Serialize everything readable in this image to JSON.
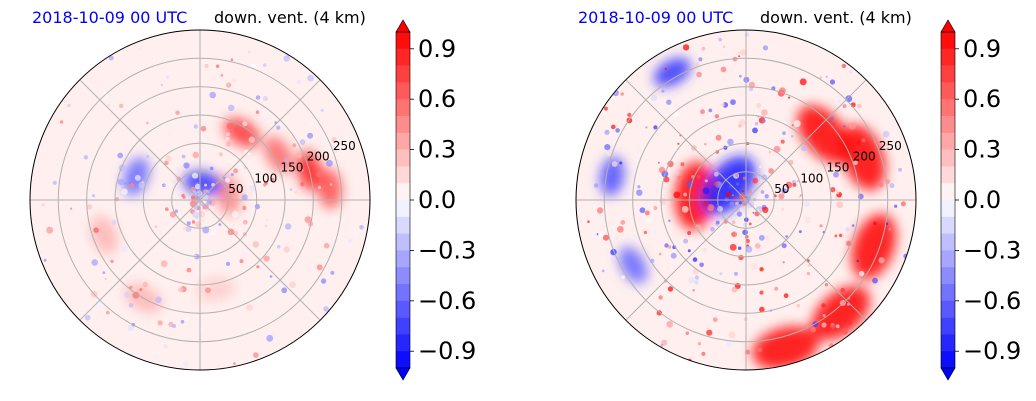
{
  "chart_data": [
    {
      "type": "heatmap",
      "projection": "polar",
      "date": "2018-10-09 00 UTC",
      "title": "down. vent. (4 km)",
      "radial_ticks": [
        50,
        100,
        150,
        200,
        250
      ],
      "radial_max": 300,
      "angular_gridlines_deg": [
        0,
        45,
        90,
        135,
        180,
        225,
        270,
        315
      ],
      "colorbar": {
        "ticks": [
          "0.9",
          "0.6",
          "0.3",
          "0.0",
          "−0.3",
          "−0.6",
          "−0.9"
        ],
        "range": [
          -1.0,
          1.0
        ],
        "colormap": "bwr",
        "extend": "both",
        "levels": 20
      },
      "field": [
        {
          "r": 140,
          "theta": 58,
          "value": 0.8
        },
        {
          "r": 160,
          "theta": 30,
          "value": 0.6
        },
        {
          "r": 200,
          "theta": 15,
          "value": 0.9
        },
        {
          "r": 230,
          "theta": 5,
          "value": 0.7
        },
        {
          "r": 50,
          "theta": 10,
          "value": 0.5
        },
        {
          "r": 120,
          "theta": 160,
          "value": -0.6
        },
        {
          "r": 30,
          "theta": 80,
          "value": -0.8
        },
        {
          "r": 180,
          "theta": 200,
          "value": 0.3
        },
        {
          "r": 200,
          "theta": 240,
          "value": 0.3
        },
        {
          "r": 160,
          "theta": 280,
          "value": 0.2
        }
      ]
    },
    {
      "type": "heatmap",
      "projection": "polar",
      "date": "2018-10-09 00 UTC",
      "title": "down. vent. (4 km)",
      "radial_ticks": [
        50,
        100,
        150,
        200,
        250
      ],
      "radial_max": 300,
      "angular_gridlines_deg": [
        0,
        45,
        90,
        135,
        180,
        225,
        270,
        315
      ],
      "colorbar": {
        "ticks": [
          "0.9",
          "0.6",
          "0.3",
          "0.0",
          "−0.3",
          "−0.6",
          "−0.9"
        ],
        "range": [
          -1.0,
          1.0
        ],
        "colormap": "bwr",
        "extend": "both",
        "levels": 20
      },
      "field": [
        {
          "r": 180,
          "theta": 40,
          "value": 1.0
        },
        {
          "r": 220,
          "theta": 20,
          "value": 1.0
        },
        {
          "r": 240,
          "theta": -20,
          "value": 1.0
        },
        {
          "r": 260,
          "theta": -50,
          "value": 1.0
        },
        {
          "r": 270,
          "theta": -75,
          "value": 1.0
        },
        {
          "r": 90,
          "theta": 175,
          "value": 1.0
        },
        {
          "r": 260,
          "theta": 120,
          "value": -0.8
        },
        {
          "r": 240,
          "theta": 170,
          "value": -0.7
        },
        {
          "r": 230,
          "theta": 210,
          "value": -0.6
        },
        {
          "r": 40,
          "theta": 140,
          "value": -0.9
        }
      ]
    }
  ]
}
